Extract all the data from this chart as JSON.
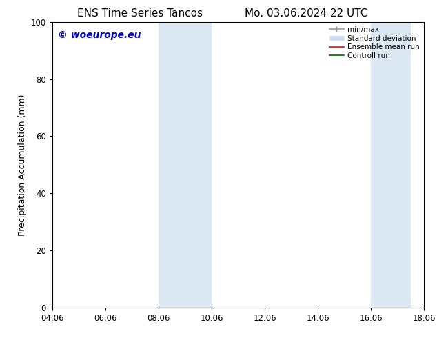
{
  "title_left": "ENS Time Series Tancos",
  "title_right": "Mo. 03.06.2024 22 UTC",
  "ylabel": "Precipitation Accumulation (mm)",
  "ylim": [
    0,
    100
  ],
  "yticks": [
    0,
    20,
    40,
    60,
    80,
    100
  ],
  "xtick_labels": [
    "04.06",
    "06.06",
    "08.06",
    "10.06",
    "12.06",
    "14.06",
    "16.06",
    "18.06"
  ],
  "xtick_positions": [
    0,
    2,
    4,
    6,
    8,
    10,
    12,
    14
  ],
  "watermark": "© woeurope.eu",
  "watermark_color": "#0000cc",
  "background_color": "#ffffff",
  "shaded_regions": [
    {
      "xstart": 4,
      "xend": 6,
      "color": "#dce9f5"
    },
    {
      "xstart": 12,
      "xend": 13.5,
      "color": "#dce9f5"
    }
  ],
  "legend_items": [
    {
      "label": "min/max",
      "color": "#999999",
      "lw": 1.2
    },
    {
      "label": "Standard deviation",
      "color": "#ccddee",
      "lw": 5
    },
    {
      "label": "Ensemble mean run",
      "color": "#ff0000",
      "lw": 1.2
    },
    {
      "label": "Controll run",
      "color": "#006600",
      "lw": 1.2
    }
  ],
  "title_fontsize": 11,
  "axis_fontsize": 9,
  "tick_fontsize": 8.5,
  "watermark_fontsize": 10,
  "legend_fontsize": 7.5
}
